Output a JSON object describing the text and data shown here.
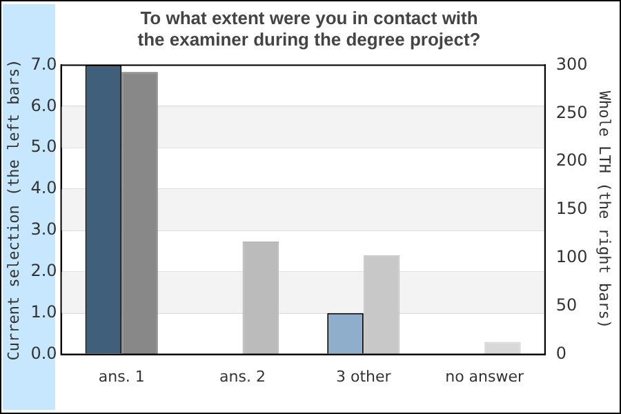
{
  "chart_data": {
    "type": "bar",
    "title": "To what extent were you in contact with\nthe examiner during the degree project?",
    "ylabel": "Current selection (the left bars)",
    "y2label": "Whole LTH (the right bars)",
    "categories": [
      "ans. 1",
      "ans. 2",
      "3 other",
      "no answer"
    ],
    "series": [
      {
        "colors": [
          "#3f5f7b",
          "#3f5f7b",
          "#8eaecb",
          "#3f5f7b"
        ],
        "values": [
          7.0,
          0,
          1.0,
          0
        ]
      },
      {
        "colors": [
          "#888888",
          "#bbbbbb",
          "#c8c8c8",
          "#d8d8d8"
        ],
        "values": [
          293,
          117,
          103,
          13
        ],
        "axis": "y2"
      }
    ],
    "ylim": [
      0,
      7
    ],
    "yticks": [
      {
        "value": 0,
        "label": "0.0"
      },
      {
        "value": 1,
        "label": "1.0"
      },
      {
        "value": 2,
        "label": "2.0"
      },
      {
        "value": 3,
        "label": "3.0"
      },
      {
        "value": 4,
        "label": "4.0"
      },
      {
        "value": 5,
        "label": "5.0"
      },
      {
        "value": 6,
        "label": "6.0"
      },
      {
        "value": 7,
        "label": "7.0"
      }
    ],
    "y2lim": [
      0,
      300
    ],
    "y2ticks": [
      0,
      50,
      100,
      150,
      200,
      250,
      300
    ],
    "bands": [
      {
        "axis": "y",
        "from": 5,
        "to": 6,
        "color": "#f3f3f3"
      },
      {
        "axis": "y",
        "from": 3,
        "to": 4,
        "color": "#f3f3f3"
      },
      {
        "axis": "y",
        "from": 1,
        "to": 2,
        "color": "#f3f3f3"
      }
    ],
    "grid": "y",
    "legend": false
  }
}
